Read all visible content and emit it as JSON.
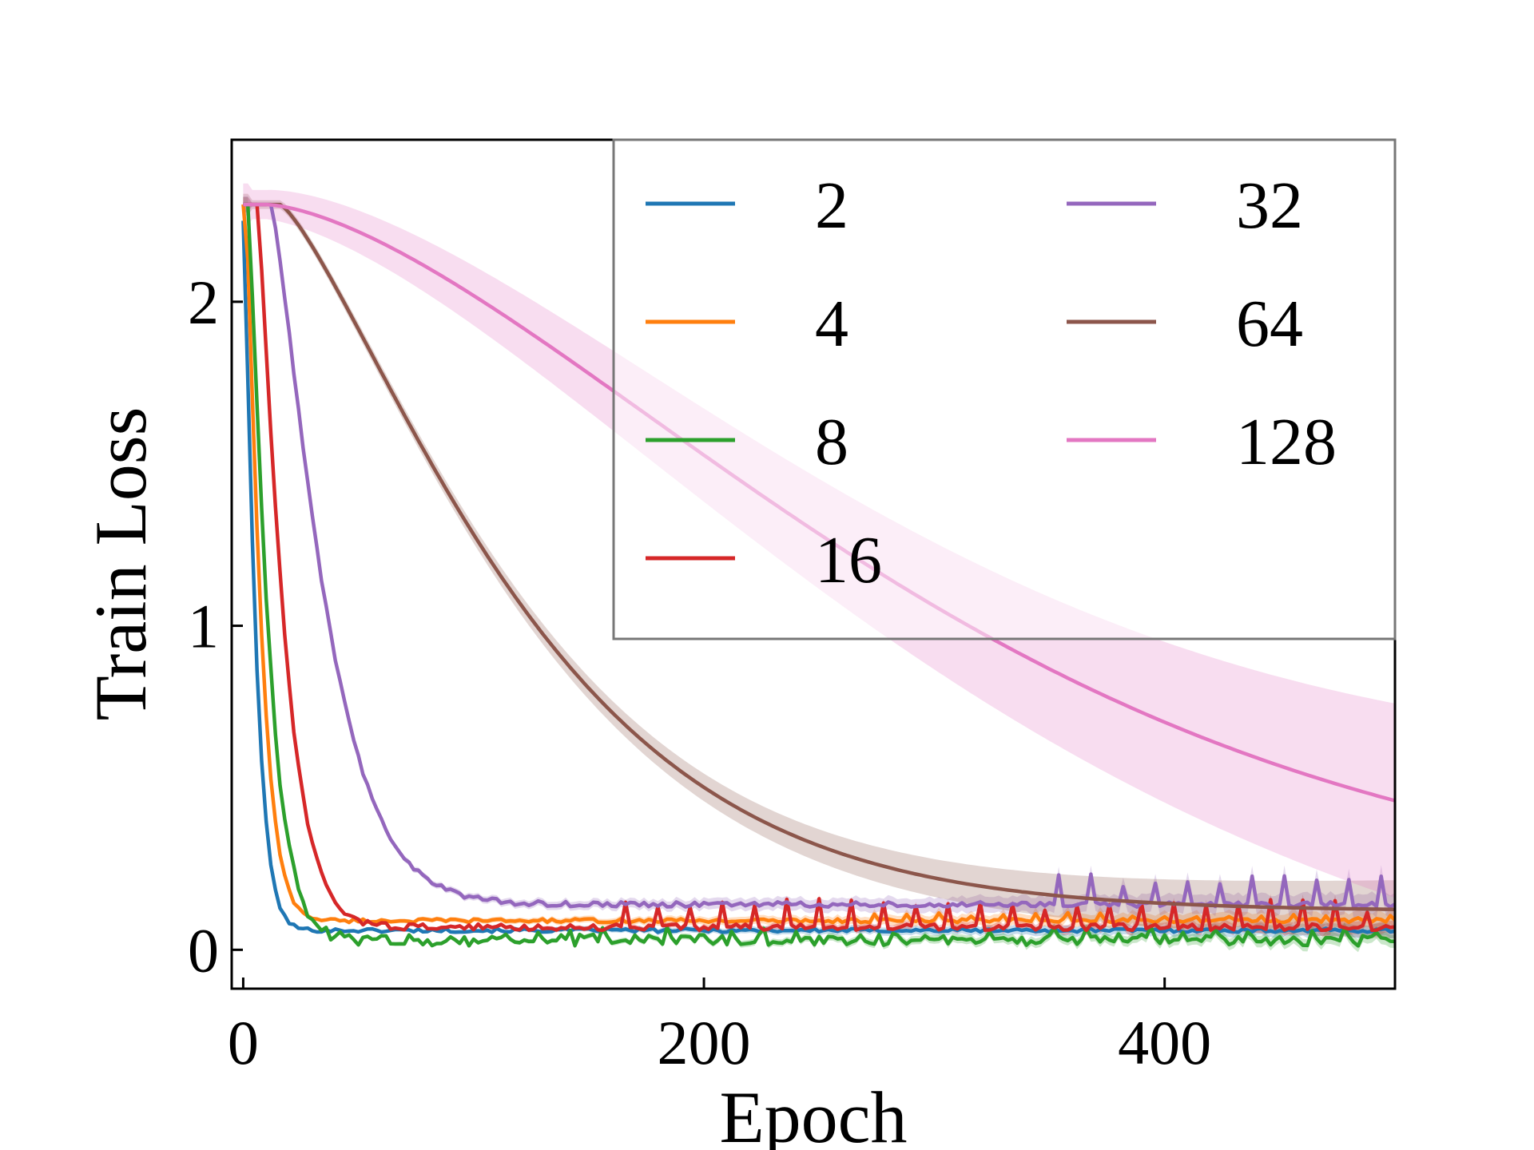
{
  "chart_data": {
    "type": "line",
    "title": "",
    "xlabel": "Epoch",
    "ylabel": "Train Loss",
    "xlim": [
      -5,
      500
    ],
    "ylim": [
      -0.12,
      2.5
    ],
    "xticks": [
      0,
      200,
      400
    ],
    "xtick_labels": [
      "0",
      "200",
      "400"
    ],
    "yticks": [
      0,
      1,
      2
    ],
    "ytick_labels": [
      "0",
      "1",
      "2"
    ],
    "grid": false,
    "legend": {
      "placement": "top-right",
      "columns": 2
    },
    "series": [
      {
        "name": "2",
        "color": "#1f77b4",
        "start": 2.25,
        "tau": 6,
        "plateau": 0,
        "delay": 0,
        "final": 0.06,
        "band": 0.02,
        "noise": 0.006,
        "spike_start": 9999,
        "spike_amp": 0
      },
      {
        "name": "4",
        "color": "#ff7f0e",
        "start": 2.3,
        "tau": 7.5,
        "plateau": 1,
        "delay": 0,
        "final": 0.09,
        "band": 0.025,
        "noise": 0.006,
        "spike_start": 260,
        "spike_amp": 0.02
      },
      {
        "name": "8",
        "color": "#2ca02c",
        "start": 2.3,
        "tau": 10,
        "plateau": 2,
        "delay": 0,
        "final": 0.03,
        "band": 0.02,
        "noise": 0.018,
        "spike_start": 100,
        "spike_amp": 0.03
      },
      {
        "name": "16",
        "color": "#d62728",
        "start": 2.3,
        "tau": 13,
        "plateau": 6,
        "delay": 2,
        "final": 0.07,
        "band": 0.02,
        "noise": 0.01,
        "spike_start": 165,
        "spike_amp": 0.09
      },
      {
        "name": "32",
        "color": "#9467bd",
        "start": 2.3,
        "tau": 27,
        "plateau": 12,
        "delay": 10,
        "final": 0.14,
        "band": 0.035,
        "noise": 0.008,
        "spike_start": 340,
        "spike_amp": 0.09
      },
      {
        "name": "64",
        "color": "#8c564b",
        "start": 2.3,
        "tau": 120,
        "plateau": 16,
        "delay": 10,
        "final": 0.12,
        "band": 0.09,
        "noise": 0,
        "spike_start": 9999,
        "spike_amp": 0
      },
      {
        "name": "128",
        "color": "#e377c2",
        "start": 2.3,
        "tau": 320,
        "plateau": 10,
        "delay": 60,
        "final": 0.15,
        "band": 0.3,
        "noise": 0,
        "spike_start": 9999,
        "spike_amp": 0
      }
    ]
  }
}
